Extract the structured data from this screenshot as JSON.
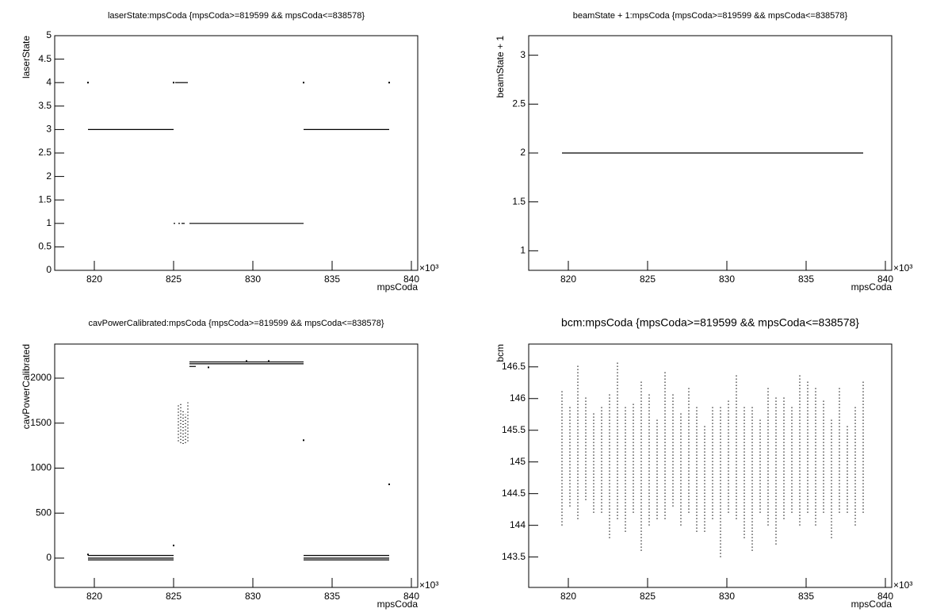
{
  "chart_data": [
    {
      "type": "scatter",
      "title": "laserState:mpsCoda {mpsCoda>=819599 && mpsCoda<=838578}",
      "xlabel": "mpsCoda",
      "ylabel": "laserState",
      "x_scale_label": "×10³",
      "xlim": [
        817.5,
        840.4
      ],
      "xticks": [
        820,
        825,
        830,
        835,
        840
      ],
      "ylim": [
        0,
        5
      ],
      "yticks": [
        0,
        0.5,
        1,
        1.5,
        2,
        2.5,
        3,
        3.5,
        4,
        4.5,
        5
      ],
      "color": "#000000",
      "segments": [
        {
          "y": 3,
          "x": [
            819.6,
            825.0
          ]
        },
        {
          "y": 4,
          "x": [
            825.1,
            825.9
          ]
        },
        {
          "y": 1,
          "x": [
            825.0,
            825.1
          ]
        },
        {
          "y": 1,
          "x": [
            825.3,
            825.4
          ]
        },
        {
          "y": 1,
          "x": [
            825.5,
            825.7
          ]
        },
        {
          "y": 1,
          "x": [
            826.0,
            833.2
          ]
        },
        {
          "y": 3,
          "x": [
            833.2,
            838.6
          ]
        }
      ],
      "points": {
        "x": [
          819.6,
          833.2,
          838.6,
          825.0
        ],
        "y": [
          4,
          4,
          4,
          4
        ]
      }
    },
    {
      "type": "scatter",
      "title": "beamState + 1:mpsCoda {mpsCoda>=819599 && mpsCoda<=838578}",
      "xlabel": "mpsCoda",
      "ylabel": "beamState + 1",
      "x_scale_label": "×10³",
      "xlim": [
        817.5,
        840.4
      ],
      "xticks": [
        820,
        825,
        830,
        835,
        840
      ],
      "ylim": [
        0.8,
        3.2
      ],
      "yticks": [
        1,
        1.5,
        2,
        2.5,
        3
      ],
      "color": "#000000",
      "segments": [
        {
          "y": 2,
          "x": [
            819.6,
            838.6
          ]
        }
      ]
    },
    {
      "type": "scatter",
      "title": "cavPowerCalibrated:mpsCoda {mpsCoda>=819599 && mpsCoda<=838578}",
      "xlabel": "mpsCoda",
      "ylabel": "cavPowerCalibrated",
      "x_scale_label": "×10³",
      "xlim": [
        817.5,
        840.4
      ],
      "xticks": [
        820,
        825,
        830,
        835,
        840
      ],
      "ylim": [
        -326,
        2379
      ],
      "yticks": [
        0,
        500,
        1000,
        1500,
        2000
      ],
      "color": "#000000",
      "segments": [
        {
          "y": 30,
          "x": [
            819.6,
            825.0
          ]
        },
        {
          "y": 0,
          "x": [
            819.6,
            825.0
          ]
        },
        {
          "y": -20,
          "x": [
            819.6,
            825.0
          ]
        },
        {
          "y": 2180,
          "x": [
            826.0,
            833.2
          ]
        },
        {
          "y": 2160,
          "x": [
            826.0,
            833.2
          ]
        },
        {
          "y": 2130,
          "x": [
            826.0,
            826.4
          ]
        },
        {
          "y": 30,
          "x": [
            833.2,
            838.6
          ]
        },
        {
          "y": 0,
          "x": [
            833.2,
            838.6
          ]
        },
        {
          "y": -20,
          "x": [
            833.2,
            838.6
          ]
        }
      ],
      "ranges": {
        "x": [
          825.3,
          825.45,
          825.6,
          825.75,
          825.9
        ],
        "low": [
          1300,
          1280,
          1270,
          1280,
          1300
        ],
        "high": [
          1700,
          1720,
          1650,
          1600,
          1730
        ]
      },
      "points": {
        "x": [
          825.0,
          833.2,
          838.6,
          827.2,
          829.6,
          831.0,
          819.6
        ],
        "y": [
          140,
          1310,
          820,
          2120,
          2190,
          2190,
          40
        ]
      }
    },
    {
      "type": "scatter",
      "title": "bcm:mpsCoda {mpsCoda>=819599 && mpsCoda<=838578}",
      "xlabel": "mpsCoda",
      "ylabel": "bcm",
      "x_scale_label": "×10³",
      "xlim": [
        817.5,
        840.4
      ],
      "xticks": [
        820,
        825,
        830,
        835,
        840
      ],
      "ylim": [
        143.02,
        146.86
      ],
      "yticks": [
        143.5,
        144,
        144.5,
        145,
        145.5,
        146,
        146.5
      ],
      "color": "#000000",
      "ranges": {
        "x": [
          819.6,
          820.1,
          820.6,
          821.1,
          821.6,
          822.1,
          822.6,
          823.1,
          823.6,
          824.1,
          824.6,
          825.1,
          825.6,
          826.1,
          826.6,
          827.1,
          827.6,
          828.1,
          828.6,
          829.1,
          829.6,
          830.1,
          830.6,
          831.1,
          831.6,
          832.1,
          832.6,
          833.1,
          833.6,
          834.1,
          834.6,
          835.1,
          835.6,
          836.1,
          836.6,
          837.1,
          837.6,
          838.1,
          838.6
        ],
        "low": [
          144.0,
          144.3,
          144.1,
          144.4,
          144.2,
          144.2,
          143.8,
          144.1,
          143.9,
          144.2,
          143.6,
          144.0,
          144.1,
          144.1,
          144.3,
          144.0,
          144.2,
          143.9,
          143.9,
          144.1,
          143.5,
          144.2,
          144.1,
          143.8,
          143.6,
          144.2,
          144.0,
          143.7,
          144.1,
          144.2,
          144.0,
          144.2,
          144.0,
          144.2,
          143.8,
          144.2,
          144.2,
          144.0,
          144.2
        ],
        "high": [
          146.15,
          145.9,
          146.55,
          146.05,
          145.8,
          145.9,
          146.1,
          146.6,
          145.9,
          145.95,
          146.3,
          146.1,
          145.7,
          146.45,
          146.1,
          145.8,
          146.2,
          145.9,
          145.6,
          145.9,
          145.9,
          146.0,
          146.4,
          145.9,
          145.9,
          145.7,
          146.2,
          146.05,
          146.05,
          145.9,
          146.4,
          146.3,
          146.2,
          146.0,
          145.7,
          146.2,
          145.6,
          145.9,
          146.3
        ]
      }
    }
  ]
}
